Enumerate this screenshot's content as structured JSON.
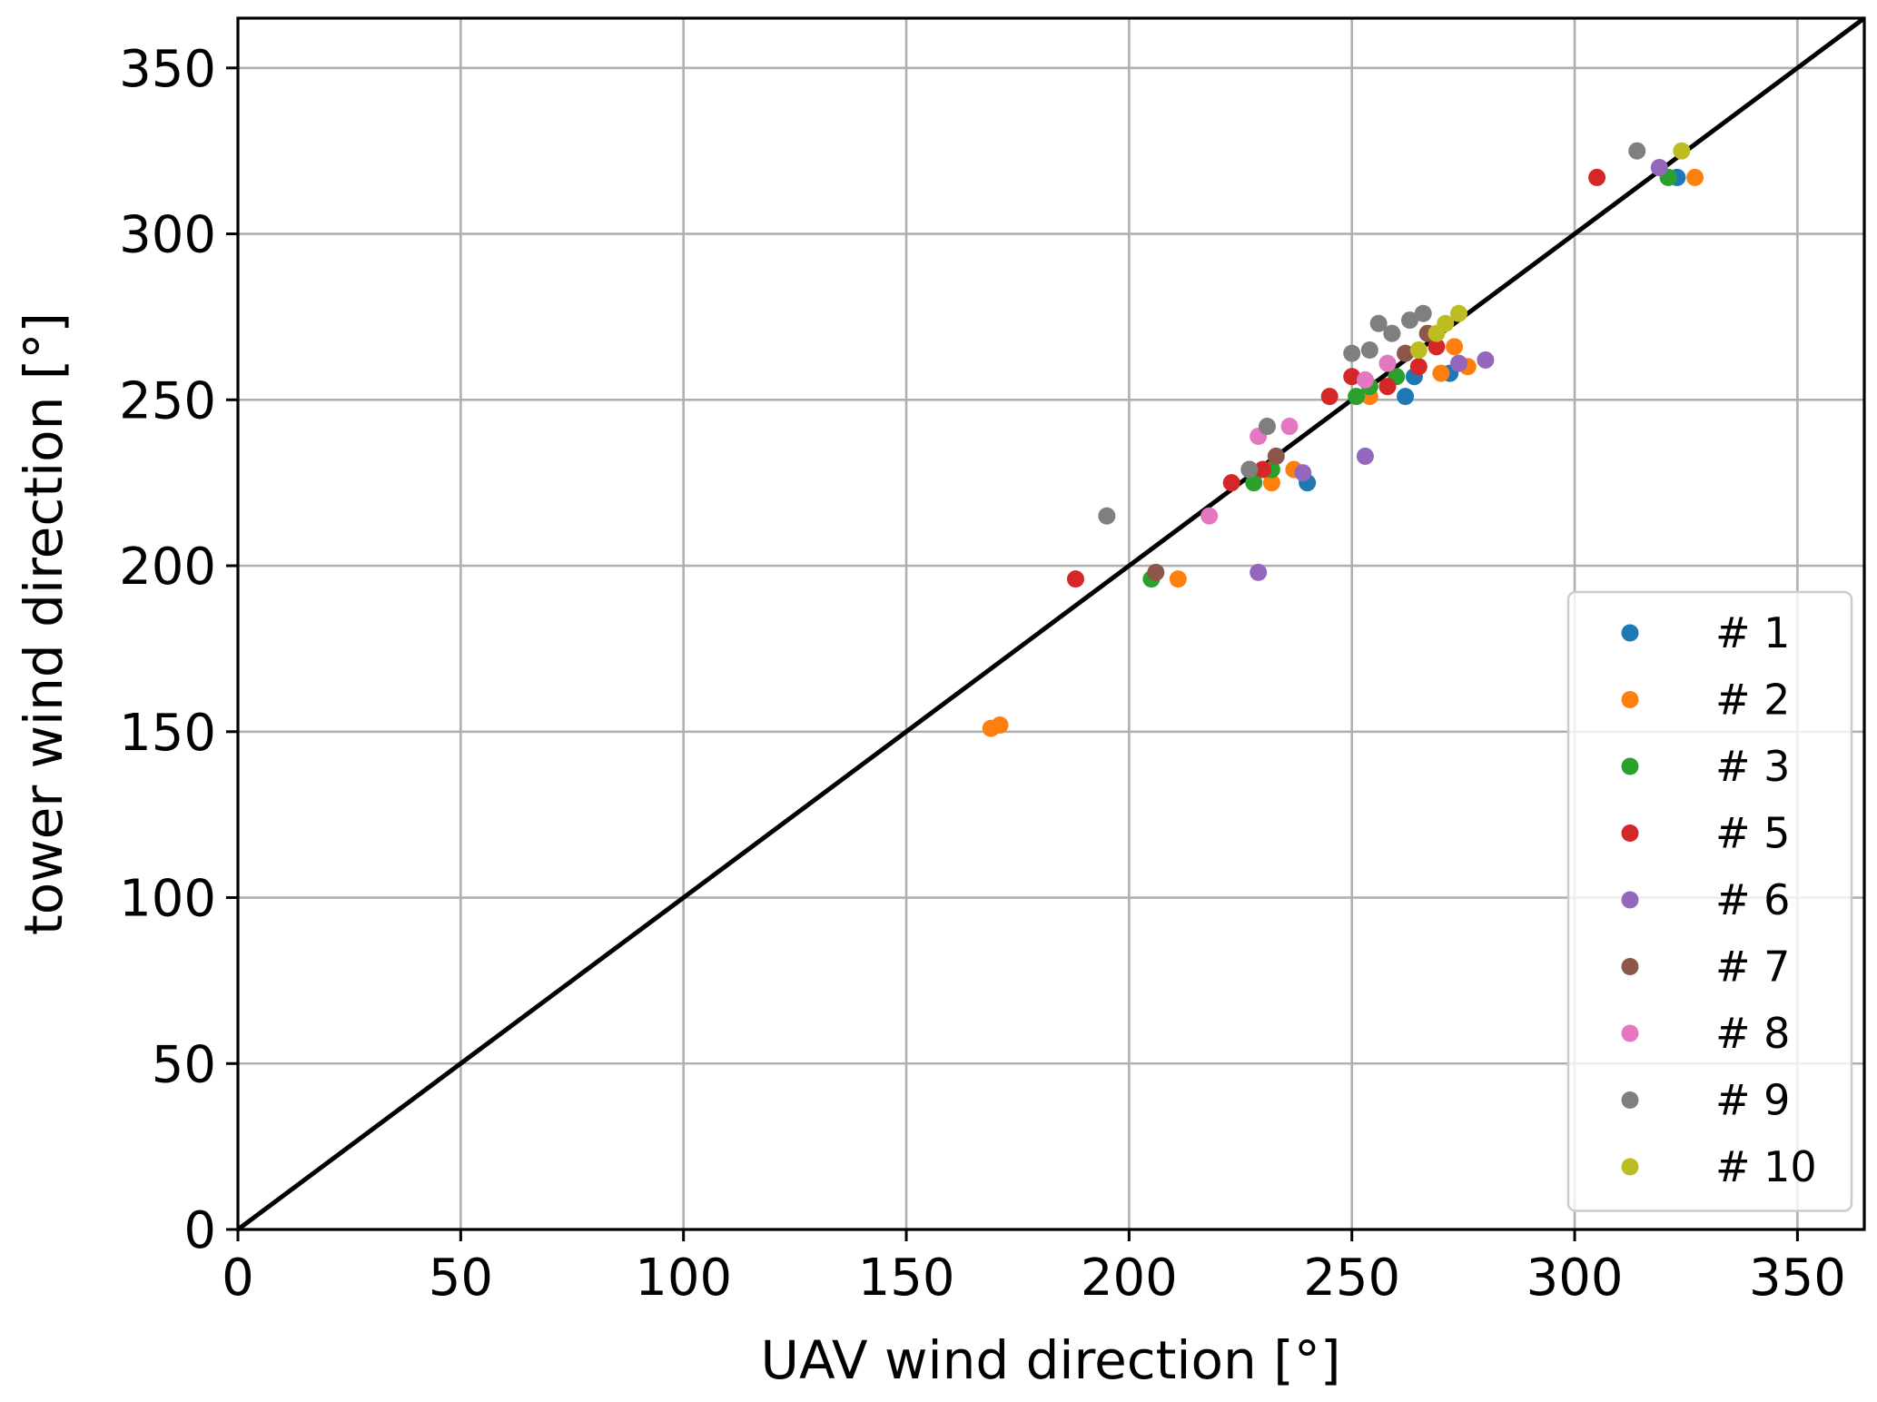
{
  "chart_data": {
    "type": "scatter",
    "title": "",
    "xlabel": "UAV wind direction [°]",
    "ylabel": "tower wind direction [°]",
    "xlim": [
      0,
      365
    ],
    "ylim": [
      0,
      365
    ],
    "xticks": [
      0,
      50,
      100,
      150,
      200,
      250,
      300,
      350
    ],
    "yticks": [
      0,
      50,
      100,
      150,
      200,
      250,
      300,
      350
    ],
    "grid": true,
    "legend_position": "lower-right",
    "reference_line": {
      "from": [
        0,
        0
      ],
      "to": [
        365,
        365
      ],
      "color": "#000000"
    },
    "series": [
      {
        "name": "# 1",
        "color": "#1f77b4",
        "points": [
          [
            240,
            225
          ],
          [
            227,
            229
          ],
          [
            262,
            251
          ],
          [
            264,
            257
          ],
          [
            272,
            258
          ],
          [
            323,
            317
          ]
        ]
      },
      {
        "name": "# 2",
        "color": "#ff7f0e",
        "points": [
          [
            169,
            151
          ],
          [
            171,
            152
          ],
          [
            211,
            196
          ],
          [
            232,
            225
          ],
          [
            237,
            229
          ],
          [
            254,
            251
          ],
          [
            270,
            258
          ],
          [
            273,
            266
          ],
          [
            276,
            260
          ],
          [
            327,
            317
          ]
        ]
      },
      {
        "name": "# 3",
        "color": "#2ca02c",
        "points": [
          [
            205,
            196
          ],
          [
            228,
            225
          ],
          [
            232,
            229
          ],
          [
            251,
            251
          ],
          [
            254,
            254
          ],
          [
            260,
            257
          ],
          [
            321,
            317
          ]
        ]
      },
      {
        "name": "# 5",
        "color": "#d62728",
        "points": [
          [
            188,
            196
          ],
          [
            223,
            225
          ],
          [
            230,
            229
          ],
          [
            245,
            251
          ],
          [
            250,
            257
          ],
          [
            258,
            254
          ],
          [
            265,
            260
          ],
          [
            269,
            266
          ],
          [
            305,
            317
          ]
        ]
      },
      {
        "name": "# 6",
        "color": "#9467bd",
        "points": [
          [
            229,
            198
          ],
          [
            239,
            228
          ],
          [
            253,
            233
          ],
          [
            274,
            261
          ],
          [
            280,
            262
          ],
          [
            319,
            320
          ]
        ]
      },
      {
        "name": "# 7",
        "color": "#8c564b",
        "points": [
          [
            206,
            198
          ],
          [
            233,
            233
          ],
          [
            262,
            264
          ],
          [
            267,
            270
          ]
        ]
      },
      {
        "name": "# 8",
        "color": "#e377c2",
        "points": [
          [
            218,
            215
          ],
          [
            229,
            239
          ],
          [
            236,
            242
          ],
          [
            253,
            256
          ],
          [
            258,
            261
          ]
        ]
      },
      {
        "name": "# 9",
        "color": "#7f7f7f",
        "points": [
          [
            195,
            215
          ],
          [
            227,
            229
          ],
          [
            231,
            242
          ],
          [
            250,
            264
          ],
          [
            254,
            265
          ],
          [
            256,
            273
          ],
          [
            259,
            270
          ],
          [
            263,
            274
          ],
          [
            266,
            276
          ],
          [
            314,
            325
          ]
        ]
      },
      {
        "name": "# 10",
        "color": "#bcbd22",
        "points": [
          [
            265,
            265
          ],
          [
            269,
            270
          ],
          [
            271,
            273
          ],
          [
            274,
            276
          ],
          [
            324,
            325
          ]
        ]
      }
    ]
  }
}
